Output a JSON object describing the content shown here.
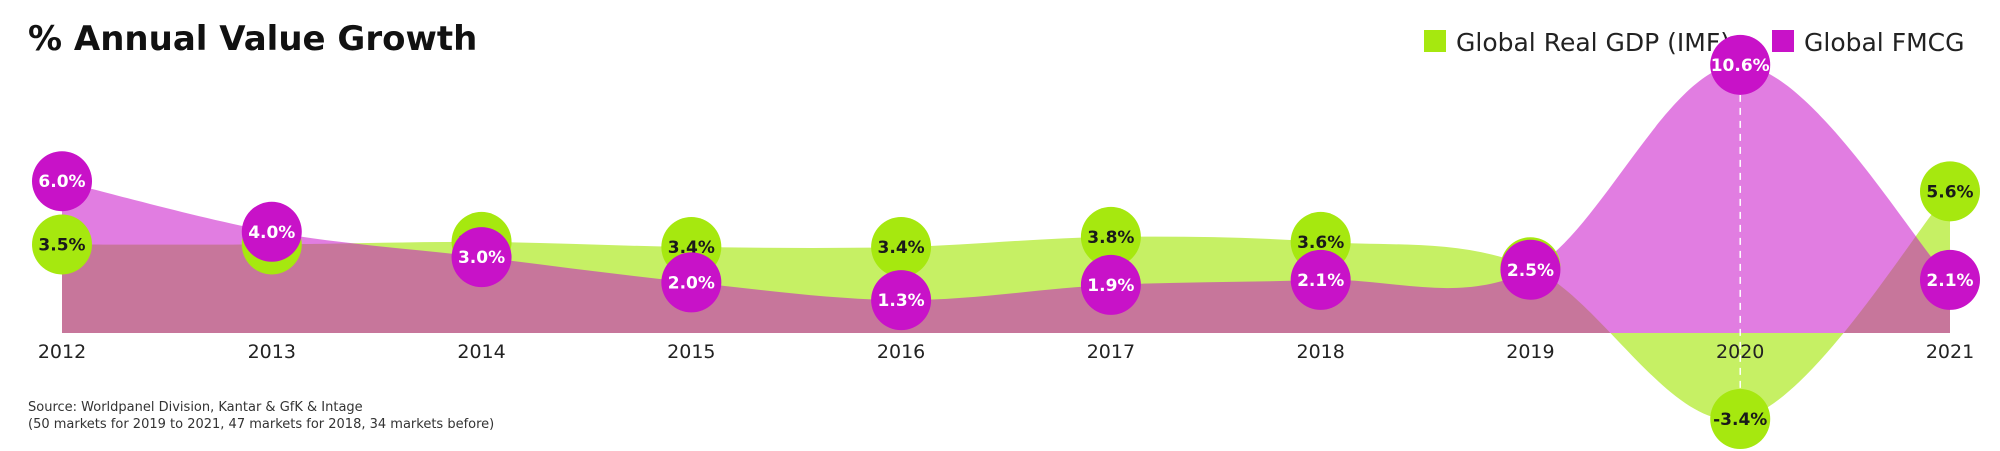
{
  "title": "% Annual Value Growth",
  "legend": [
    {
      "label": "Global Real GDP (IMF)",
      "color": "#A6E80F"
    },
    {
      "label": "Global FMCG",
      "color": "#C812C8"
    }
  ],
  "source": [
    "Source: Worldpanel Division, Kantar & GfK & Intage",
    "(50 markets for 2019 to 2021, 47 markets for 2018, 34 markets before)"
  ],
  "chart_data": {
    "type": "area",
    "x": [
      "2012",
      "2013",
      "2014",
      "2015",
      "2016",
      "2017",
      "2018",
      "2019",
      "2020",
      "2021"
    ],
    "series": [
      {
        "name": "Global Real GDP (IMF)",
        "color": "#A6E80F",
        "values": [
          3.5,
          3.5,
          3.6,
          3.4,
          3.4,
          3.8,
          3.6,
          2.6,
          -3.4,
          5.6
        ],
        "labels": [
          "3.5%",
          "3.5%",
          "3.6%",
          "3.4%",
          "3.4%",
          "3.8%",
          "3.6%",
          "2.6%",
          "-3.4%",
          "5.6%"
        ]
      },
      {
        "name": "Global FMCG",
        "color": "#C812C8",
        "values": [
          6.0,
          4.0,
          3.0,
          2.0,
          1.3,
          1.9,
          2.1,
          2.5,
          10.6,
          2.1
        ],
        "labels": [
          "6.0%",
          "4.0%",
          "3.0%",
          "2.0%",
          "1.3%",
          "1.9%",
          "2.1%",
          "2.5%",
          "10.6%",
          "2.1%"
        ]
      }
    ],
    "highlight_year": "2020",
    "legend_position": "top-right",
    "grid": false
  }
}
